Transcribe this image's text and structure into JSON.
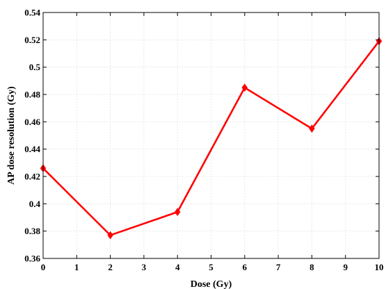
{
  "chart_data": {
    "type": "line",
    "xlabel": "Dose (Gy)",
    "ylabel": "AP dose resolution (Gy)",
    "xlim": [
      0,
      10
    ],
    "ylim": [
      0.36,
      0.54
    ],
    "x_ticks": [
      "0",
      "1",
      "2",
      "3",
      "4",
      "5",
      "6",
      "7",
      "8",
      "9",
      "10"
    ],
    "y_ticks": [
      "0.36",
      "0.38",
      "0.4",
      "0.42",
      "0.44",
      "0.46",
      "0.48",
      "0.5",
      "0.52",
      "0.54"
    ],
    "grid": true,
    "series": [
      {
        "color": "#ff0000",
        "marker": "diamond",
        "x": [
          0,
          2,
          4,
          6,
          8,
          10
        ],
        "y": [
          0.426,
          0.377,
          0.394,
          0.485,
          0.455,
          0.519
        ]
      }
    ]
  }
}
